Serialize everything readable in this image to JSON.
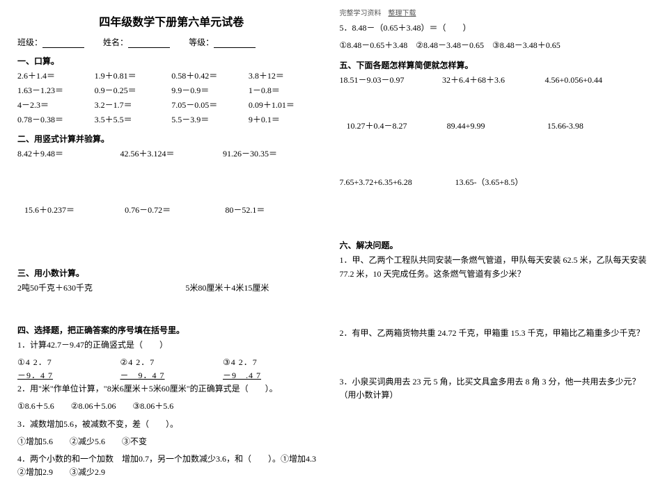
{
  "title": "四年级数学下册第六单元试卷",
  "header": {
    "class_label": "班级：",
    "name_label": "姓名：",
    "grade_label": "等级："
  },
  "s1": {
    "h": "一、口算。",
    "r1": [
      "2.6＋1.4＝",
      "1.9＋0.81＝",
      "0.58＋0.42＝",
      "3.8＋12＝"
    ],
    "r2": [
      "1.63－1.23＝",
      "0.9－0.25＝",
      "9.9－0.9＝",
      "1－0.8＝"
    ],
    "r3": [
      "4－2.3＝",
      "3.2－1.7＝",
      "7.05－0.05＝",
      "0.09＋1.01＝"
    ],
    "r4": [
      "0.78－0.38＝",
      "3.5＋5.5＝",
      "5.5－3.9＝",
      "9＋0.1＝"
    ]
  },
  "s2": {
    "h": "二、用竖式计算并验算。",
    "r1": [
      "8.42＋9.48＝",
      "42.56＋3.124＝",
      "91.26－30.35＝"
    ],
    "r2": [
      "15.6＋0.237＝",
      "0.76－0.72＝",
      "80－52.1＝"
    ]
  },
  "s3": {
    "h": "三、用小数计算。",
    "r1": [
      "2吨50千克＋630千克",
      "5米80厘米＋4米15厘米"
    ]
  },
  "s4": {
    "h": "四、选择题，把正确答案的序号填在括号里。",
    "q1": "1．计算42.7－9.47的正确竖式是（　　）",
    "q1a": [
      "①4 2．7",
      "②4 2．7",
      "③4 2．7"
    ],
    "q1b": [
      "－9．4 7",
      "－　9．4 7",
      "－9　.4 7"
    ],
    "q2": "2．用\"米\"作单位计算，\"8米6厘米＋5米60厘米\"的正确算式是（　　）。",
    "q2o": "①8.6＋5.6　　②8.06＋5.06　　③8.06＋5.6",
    "q3": "3．减数增加5.6，被减数不变，差（　　）。",
    "q3o": "①增加5.6　　②减少5.6　　③不变",
    "q4": "4．两个小数的和一个加数　增加0.7，另一个加数减少3.6，和（　　）。①增加4.3　　②增加2.9　　③减少2.9"
  },
  "topbar": {
    "t1": "完整学习资料",
    "t2": "整理下载"
  },
  "s5a": {
    "line1": "5．8.48－（0.65＋3.48）＝（　　）",
    "line2": "①8.48－0.65＋3.48　②8.48－3.48－0.65　③8.48－3.48＋0.65"
  },
  "s5": {
    "h": "五、下面各题怎样算简便就怎样算。",
    "r1": [
      "18.51－9.03－0.97",
      "32＋6.4＋68＋3.6",
      "4.56+0.056+0.44"
    ],
    "r2": [
      "10.27＋0.4－8.27",
      "89.44+9.99",
      "15.66-3.98"
    ],
    "r3": [
      "7.65+3.72+6.35+6.28",
      "13.65-（3.65+8.5）",
      ""
    ]
  },
  "s6": {
    "h": "六、解决问题。",
    "q1": "1．甲、乙两个工程队共同安装一条燃气管道，甲队每天安装 62.5 米，乙队每天安装 77.2 米，10 天完成任务。这条燃气管道有多少米？",
    "q2": "2．有甲、乙两箱货物共重 24.72 千克，甲箱重 15.3 千克，甲箱比乙箱重多少千克？",
    "q3": "3．小泉买词典用去 23 元 5 角，比买文具盒多用去 8 角 3 分，他一共用去多少元？（用小数计算）"
  }
}
